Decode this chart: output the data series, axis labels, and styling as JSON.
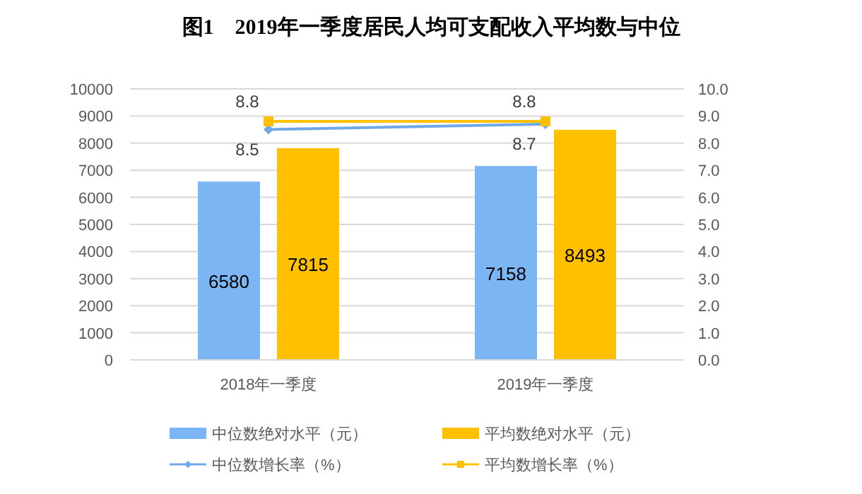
{
  "chart_data": {
    "type": "bar",
    "title": "图1　2019年一季度居民人均可支配收入平均数与中位",
    "categories": [
      "2018年一季度",
      "2019年一季度"
    ],
    "series": [
      {
        "name": "中位数绝对水平（元）",
        "color": "#7cb5f4",
        "values": [
          6580,
          7158
        ]
      },
      {
        "name": "平均数绝对水平（元）",
        "color": "#ffc000",
        "values": [
          7815,
          8493
        ]
      },
      {
        "name": "中位数增长率（%）",
        "type": "line",
        "axis": "y2",
        "marker": "diamond",
        "color": "#6fa8e8",
        "values": [
          8.5,
          8.7
        ]
      },
      {
        "name": "平均数增长率（%）",
        "type": "line",
        "axis": "y2",
        "marker": "square",
        "color": "#ffc000",
        "values": [
          8.8,
          8.8
        ]
      }
    ],
    "ylim": [
      0,
      10000
    ],
    "yticks": [
      0,
      1000,
      2000,
      3000,
      4000,
      5000,
      6000,
      7000,
      8000,
      9000,
      10000
    ],
    "y2lim": [
      0,
      10
    ],
    "y2ticks": [
      {
        "value": 0,
        "label": "0.0"
      },
      {
        "value": 1,
        "label": "1.0"
      },
      {
        "value": 2,
        "label": "2.0"
      },
      {
        "value": 3,
        "label": "3.0"
      },
      {
        "value": 4,
        "label": "4.0"
      },
      {
        "value": 5,
        "label": "5.0"
      },
      {
        "value": 6,
        "label": "6.0"
      },
      {
        "value": 7,
        "label": "7.0"
      },
      {
        "value": 8,
        "label": "8.0"
      },
      {
        "value": 9,
        "label": "9.0"
      },
      {
        "value": 10,
        "label": "10.0"
      }
    ],
    "grid": "y",
    "legend": "bottom",
    "data_labels": true
  }
}
